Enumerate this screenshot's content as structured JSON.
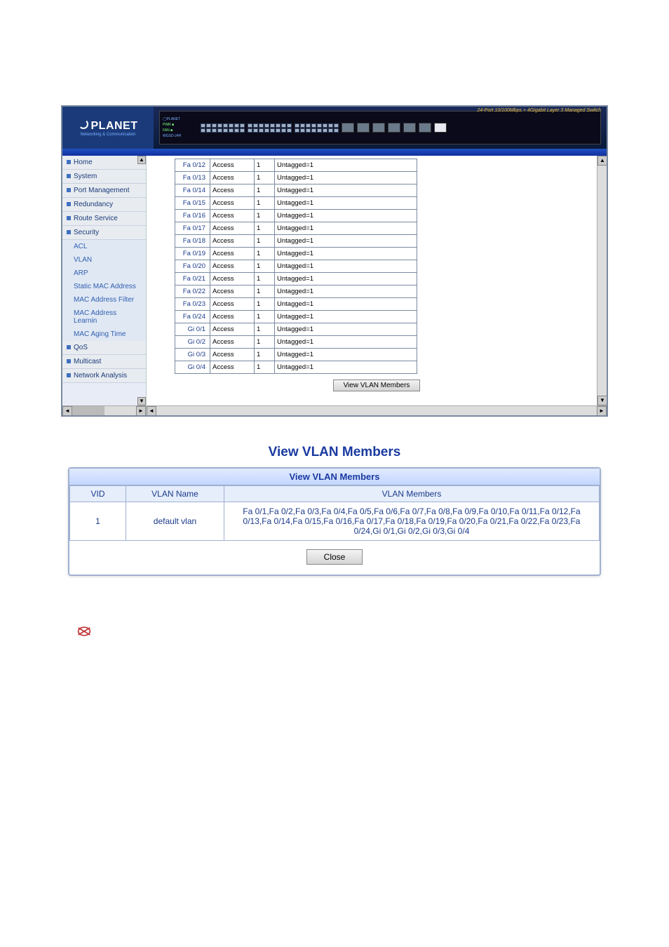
{
  "banner": {
    "brand": "PLANET",
    "brand_sub": "Networking & Communication",
    "model": "WGSD-24H",
    "switch_title": "24-Port 10/100Mbps + 4Gigabit Layer 3 Managed Switch"
  },
  "sidebar": {
    "items": [
      {
        "label": "Home",
        "sub": false
      },
      {
        "label": "System",
        "sub": false
      },
      {
        "label": "Port Management",
        "sub": false
      },
      {
        "label": "Redundancy",
        "sub": false
      },
      {
        "label": "Route Service",
        "sub": false
      },
      {
        "label": "Security",
        "sub": false
      },
      {
        "label": "ACL",
        "sub": true
      },
      {
        "label": "VLAN",
        "sub": true
      },
      {
        "label": "ARP",
        "sub": true
      },
      {
        "label": "Static MAC Address",
        "sub": true
      },
      {
        "label": "MAC Address Filter",
        "sub": true
      },
      {
        "label": "MAC Address Learnin",
        "sub": true
      },
      {
        "label": "MAC Aging Time",
        "sub": true
      },
      {
        "label": "QoS",
        "sub": false
      },
      {
        "label": "Multicast",
        "sub": false
      },
      {
        "label": "Network Analysis",
        "sub": false
      }
    ]
  },
  "porttable": {
    "mode_default": "Access",
    "pvid_default": "1",
    "tag_default": "Untagged=1",
    "rows": [
      {
        "port": "Fa 0/12"
      },
      {
        "port": "Fa 0/13"
      },
      {
        "port": "Fa 0/14"
      },
      {
        "port": "Fa 0/15"
      },
      {
        "port": "Fa 0/16"
      },
      {
        "port": "Fa 0/17"
      },
      {
        "port": "Fa 0/18"
      },
      {
        "port": "Fa 0/19"
      },
      {
        "port": "Fa 0/20"
      },
      {
        "port": "Fa 0/21"
      },
      {
        "port": "Fa 0/22"
      },
      {
        "port": "Fa 0/23"
      },
      {
        "port": "Fa 0/24"
      },
      {
        "port": "Gi 0/1"
      },
      {
        "port": "Gi 0/2"
      },
      {
        "port": "Gi 0/3"
      },
      {
        "port": "Gi 0/4"
      }
    ],
    "view_button": "View VLAN Members"
  },
  "vlan_popup": {
    "title": "View VLAN Members",
    "header": "View VLAN Members",
    "cols": {
      "vid": "VID",
      "name": "VLAN Name",
      "members": "VLAN Members"
    },
    "row": {
      "vid": "1",
      "name": "default vlan",
      "members": "Fa 0/1,Fa 0/2,Fa 0/3,Fa 0/4,Fa 0/5,Fa 0/6,Fa 0/7,Fa 0/8,Fa 0/9,Fa 0/10,Fa 0/11,Fa 0/12,Fa 0/13,Fa 0/14,Fa 0/15,Fa 0/16,Fa 0/17,Fa 0/18,Fa 0/19,Fa 0/20,Fa 0/21,Fa 0/22,Fa 0/23,Fa 0/24,Gi 0/1,Gi 0/2,Gi 0/3,Gi 0/4"
    },
    "close": "Close"
  },
  "colors": {
    "link": "#1a3aa0",
    "border": "#a0b0d0",
    "headerbg_from": "#e0eaff",
    "headerbg_to": "#c4d6ff"
  }
}
